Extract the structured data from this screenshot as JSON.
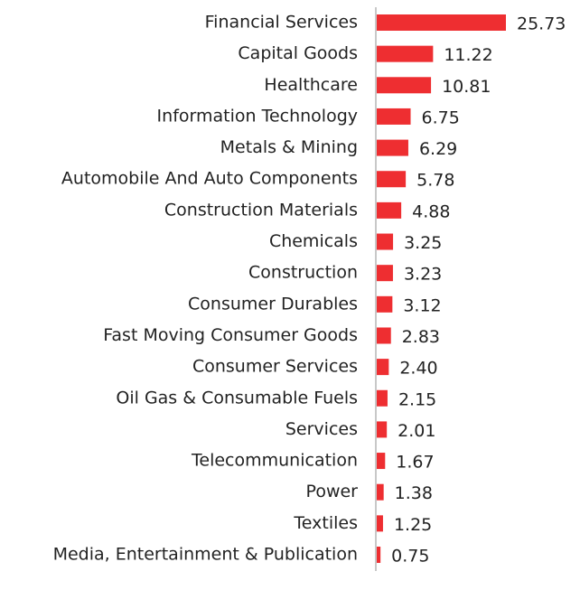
{
  "chart_data": {
    "type": "bar",
    "orientation": "horizontal",
    "color": "#ee2e31",
    "categories": [
      "Financial Services",
      "Capital Goods",
      "Healthcare",
      "Information Technology",
      "Metals & Mining",
      "Automobile And Auto Components",
      "Construction Materials",
      "Chemicals",
      "Construction",
      "Consumer Durables",
      "Fast Moving Consumer Goods",
      "Consumer Services",
      "Oil Gas & Consumable Fuels",
      "Services",
      "Telecommunication",
      "Power",
      "Textiles",
      "Media, Entertainment & Publication"
    ],
    "values": [
      25.73,
      11.22,
      10.81,
      6.75,
      6.29,
      5.78,
      4.88,
      3.25,
      3.23,
      3.12,
      2.83,
      2.4,
      2.15,
      2.01,
      1.67,
      1.38,
      1.25,
      0.75
    ],
    "value_labels": [
      "25.73",
      "11.22",
      "10.81",
      "6.75",
      "6.29",
      "5.78",
      "4.88",
      "3.25",
      "3.23",
      "3.12",
      "2.83",
      "2.40",
      "2.15",
      "2.01",
      "1.67",
      "1.38",
      "1.25",
      "0.75"
    ]
  }
}
